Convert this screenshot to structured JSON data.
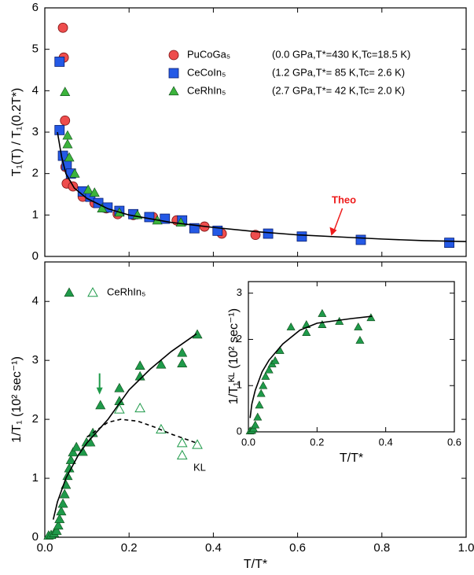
{
  "chart_data": [
    {
      "type": "scatter",
      "xlim": [
        0,
        1
      ],
      "ylim": [
        0,
        6
      ],
      "xticks": [
        0,
        0.2,
        0.4,
        0.6,
        0.8,
        1
      ],
      "show_xtick_labels": false,
      "yticks": [
        0,
        1,
        2,
        3,
        4,
        5,
        6
      ],
      "ylabel": "T₁(T) / T₁(0.2T*)",
      "series": [
        {
          "name": "PuCoGa₅",
          "note": "(0.0 GPa,T*=430 K,Tc=18.5 K)",
          "marker": "circle",
          "color": "#ee4d4d",
          "x": [
            0.043,
            0.045,
            0.048,
            0.049,
            0.052,
            0.067,
            0.09,
            0.118,
            0.146,
            0.173,
            0.21,
            0.257,
            0.313,
            0.379,
            0.42,
            0.5
          ],
          "values": [
            5.52,
            4.8,
            3.28,
            2.16,
            1.76,
            1.69,
            1.44,
            1.29,
            1.16,
            1.02,
            1.0,
            0.95,
            0.87,
            0.72,
            0.55,
            0.52
          ]
        },
        {
          "name": "CeCoIn₅",
          "note": "(1.2 GPa,T*= 85 K,Tc= 2.6 K)",
          "marker": "square",
          "color": "#2459e6",
          "x": [
            0.035,
            0.035,
            0.043,
            0.052,
            0.062,
            0.09,
            0.108,
            0.127,
            0.149,
            0.177,
            0.21,
            0.248,
            0.285,
            0.326,
            0.355,
            0.41,
            0.53,
            0.61,
            0.75,
            0.96
          ],
          "values": [
            4.7,
            3.05,
            2.43,
            2.2,
            2.0,
            1.57,
            1.44,
            1.29,
            1.18,
            1.1,
            1.02,
            0.95,
            0.91,
            0.87,
            0.68,
            0.62,
            0.55,
            0.48,
            0.4,
            0.33
          ]
        },
        {
          "name": "CeRhIn₅",
          "note": "(2.7 GPa,T*= 42 K,Tc= 2.0 K)",
          "marker": "triangle",
          "color": "#3cb43c",
          "x": [
            0.048,
            0.054,
            0.054,
            0.058,
            0.071,
            0.103,
            0.118,
            0.136,
            0.177,
            0.22,
            0.267,
            0.323
          ],
          "values": [
            3.97,
            2.92,
            2.71,
            2.39,
            2.0,
            1.61,
            1.54,
            1.16,
            1.06,
            1.0,
            0.87,
            0.82
          ]
        },
        {
          "name": "Theo",
          "marker": "line",
          "color": "#000000",
          "x": [
            0.03,
            0.04,
            0.05,
            0.07,
            0.1,
            0.15,
            0.2,
            0.3,
            0.4,
            0.5,
            0.6,
            0.7,
            0.8,
            0.9,
            1.0
          ],
          "values": [
            3.0,
            2.4,
            2.0,
            1.65,
            1.4,
            1.15,
            1.0,
            0.82,
            0.7,
            0.6,
            0.52,
            0.47,
            0.42,
            0.38,
            0.36
          ]
        }
      ]
    },
    {
      "type": "scatter",
      "xlim": [
        0,
        1
      ],
      "ylim": [
        0,
        4.67
      ],
      "xticks": [
        {
          "value": 0,
          "label": "0.0"
        },
        0.2,
        0.4,
        0.6,
        0.8,
        {
          "value": 1,
          "label": "1.0"
        }
      ],
      "yticks": [
        0,
        1,
        2,
        3,
        4
      ],
      "xlabel": "T/T*",
      "ylabel": "1/T₁ (10² sec⁻¹)",
      "series": [
        {
          "name": "CeRhIn₅",
          "marker": "triangle",
          "color": "#1f9a4a",
          "x": [
            0.009,
            0.015,
            0.022,
            0.028,
            0.032,
            0.035,
            0.039,
            0.043,
            0.047,
            0.05,
            0.054,
            0.058,
            0.062,
            0.067,
            0.075,
            0.09,
            0.099,
            0.108,
            0.114,
            0.132,
            0.177,
            0.177,
            0.226,
            0.226,
            0.276,
            0.326,
            0.326,
            0.362
          ],
          "values": [
            0.03,
            0.04,
            0.07,
            0.11,
            0.2,
            0.31,
            0.44,
            0.57,
            0.73,
            0.89,
            1.04,
            1.17,
            1.31,
            1.44,
            1.53,
            1.45,
            1.61,
            1.61,
            1.77,
            2.24,
            2.53,
            2.31,
            2.73,
            2.91,
            2.93,
            2.95,
            3.13,
            3.44
          ]
        },
        {
          "marker": "triangle-open",
          "color": "#1f9a4a",
          "x": [
            0.177,
            0.226,
            0.276,
            0.326,
            0.326,
            0.362
          ],
          "values": [
            2.17,
            2.19,
            1.83,
            1.6,
            1.39,
            1.57
          ]
        },
        {
          "marker": "line",
          "color": "#000000",
          "x": [
            0.02,
            0.03,
            0.05,
            0.08,
            0.1,
            0.15,
            0.2,
            0.25,
            0.3,
            0.36
          ],
          "values": [
            0.3,
            0.6,
            1.0,
            1.4,
            1.6,
            2.0,
            2.5,
            2.85,
            3.15,
            3.45
          ]
        },
        {
          "name": "KL",
          "marker": "dashed",
          "color": "#000000",
          "x": [
            0.1,
            0.15,
            0.18,
            0.22,
            0.26,
            0.3,
            0.36
          ],
          "values": [
            1.7,
            1.95,
            2.0,
            1.97,
            1.87,
            1.75,
            1.6
          ]
        }
      ]
    },
    {
      "type": "scatter",
      "xlim": [
        0,
        0.6
      ],
      "ylim": [
        0,
        3.25
      ],
      "xticks": [
        {
          "value": 0,
          "label": "0.0"
        },
        0.2,
        0.4,
        0.6
      ],
      "yticks": [
        0,
        1,
        2,
        3
      ],
      "xlabel": "T/T*",
      "ylabel": "1/T₁ᴷᴸ (10² sec⁻¹)",
      "series": [
        {
          "marker": "triangle",
          "color": "#1f9a4a",
          "x": [
            0.005,
            0.01,
            0.015,
            0.02,
            0.027,
            0.032,
            0.037,
            0.043,
            0.05,
            0.06,
            0.069,
            0.078,
            0.092,
            0.124,
            0.169,
            0.169,
            0.215,
            0.215,
            0.265,
            0.32,
            0.325,
            0.357
          ],
          "values": [
            0.02,
            0.03,
            0.07,
            0.15,
            0.32,
            0.58,
            0.83,
            1.0,
            1.2,
            1.34,
            1.47,
            1.54,
            1.76,
            2.27,
            2.32,
            2.15,
            2.56,
            2.32,
            2.39,
            2.27,
            1.98,
            2.47
          ]
        },
        {
          "marker": "line",
          "color": "#000000",
          "x": [
            0.005,
            0.01,
            0.02,
            0.04,
            0.06,
            0.1,
            0.15,
            0.2,
            0.3,
            0.36
          ],
          "values": [
            0.3,
            0.6,
            0.9,
            1.3,
            1.55,
            1.9,
            2.2,
            2.35,
            2.45,
            2.5
          ]
        }
      ]
    }
  ]
}
